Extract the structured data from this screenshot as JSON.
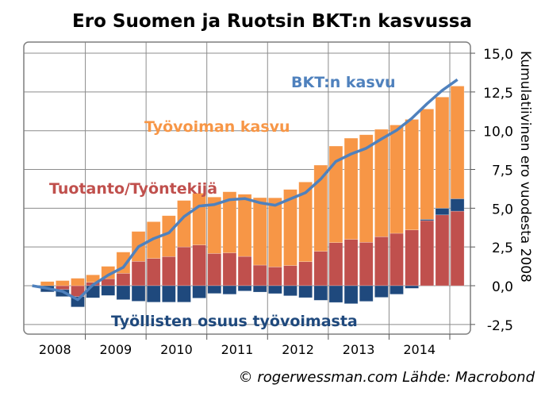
{
  "chart_data": {
    "type": "bar",
    "title": "Ero Suomen ja Ruotsin BKT:n kasvussa",
    "ylabel": "Kumulatiivinen ero vuodesta 2008",
    "ylim": [
      -2.5,
      15.0
    ],
    "yticks": [
      "15,0",
      "12,5",
      "10,0",
      "7,5",
      "5,0",
      "2,5",
      "0,0",
      "-2,5"
    ],
    "ytick_values": [
      15,
      12.5,
      10,
      7.5,
      5,
      2.5,
      0,
      -2.5
    ],
    "xtick_labels": [
      "2008",
      "2009",
      "2010",
      "2011",
      "2012",
      "2013",
      "2014"
    ],
    "grid": true,
    "stacked": true,
    "categories": [
      "2008Q2",
      "2008Q3",
      "2008Q4",
      "2009Q1",
      "2009Q2",
      "2009Q3",
      "2009Q4",
      "2010Q1",
      "2010Q2",
      "2010Q3",
      "2010Q4",
      "2011Q1",
      "2011Q2",
      "2011Q3",
      "2011Q4",
      "2012Q1",
      "2012Q2",
      "2012Q3",
      "2012Q4",
      "2013Q1",
      "2013Q2",
      "2013Q3",
      "2013Q4",
      "2014Q1",
      "2014Q2",
      "2014Q3",
      "2014Q4",
      "2015Q1"
    ],
    "series": [
      {
        "name": "Tuotanto/Työntekijä",
        "color": "#c0504d",
        "values": [
          0,
          -0.25,
          -0.7,
          0.22,
          0.45,
          0.8,
          1.57,
          1.76,
          1.88,
          2.5,
          2.63,
          2.08,
          2.12,
          1.89,
          1.33,
          1.21,
          1.3,
          1.55,
          2.22,
          2.78,
          2.99,
          2.8,
          3.16,
          3.38,
          3.6,
          4.2,
          4.57,
          4.81
        ]
      },
      {
        "name": "Työllisten osuus työvoimasta",
        "color": "#1f497d",
        "values": [
          -0.4,
          -0.45,
          -0.67,
          -0.78,
          -0.63,
          -0.9,
          -1.0,
          -1.06,
          -1.06,
          -1.06,
          -0.8,
          -0.5,
          -0.55,
          -0.34,
          -0.41,
          -0.51,
          -0.65,
          -0.77,
          -0.94,
          -1.08,
          -1.16,
          -1.01,
          -0.75,
          -0.55,
          -0.17,
          0.08,
          0.43,
          0.8
        ]
      },
      {
        "name": "Työvoiman kasvu",
        "color": "#f79646",
        "values": [
          0.27,
          0.33,
          0.48,
          0.48,
          0.8,
          1.37,
          1.93,
          2.37,
          2.64,
          3.0,
          3.34,
          3.64,
          3.94,
          4.01,
          4.35,
          4.46,
          4.91,
          5.14,
          5.56,
          6.23,
          6.53,
          6.94,
          6.93,
          6.99,
          7.13,
          7.12,
          7.17,
          7.27
        ]
      }
    ],
    "line": {
      "name": "BKT:n kasvu",
      "color": "#4f81bd",
      "x": [
        "2008Q1",
        "2008Q2",
        "2008Q3",
        "2008Q4",
        "2009Q1",
        "2009Q2",
        "2009Q3",
        "2009Q4",
        "2010Q1",
        "2010Q2",
        "2010Q3",
        "2010Q4",
        "2011Q1",
        "2011Q2",
        "2011Q3",
        "2011Q4",
        "2012Q1",
        "2012Q2",
        "2012Q3",
        "2012Q4",
        "2013Q1",
        "2013Q2",
        "2013Q3",
        "2013Q4",
        "2014Q1",
        "2014Q2",
        "2014Q3",
        "2014Q4",
        "2015Q1"
      ],
      "values": [
        0,
        -0.17,
        -0.37,
        -0.9,
        0.05,
        0.68,
        1.19,
        2.52,
        3.04,
        3.41,
        4.46,
        5.14,
        5.24,
        5.55,
        5.62,
        5.35,
        5.19,
        5.6,
        6.0,
        6.88,
        8.02,
        8.5,
        8.87,
        9.47,
        10.03,
        10.8,
        11.74,
        12.6,
        13.3
      ]
    },
    "annotations": {
      "gdp": "BKT:n kasvu",
      "labour": "Työvoiman kasvu",
      "productivity": "Tuotanto/Työntekijä",
      "employment": "Työllisten osuus työvoimasta"
    },
    "source": "© rogerwessman.com Lähde: Macrobond"
  }
}
